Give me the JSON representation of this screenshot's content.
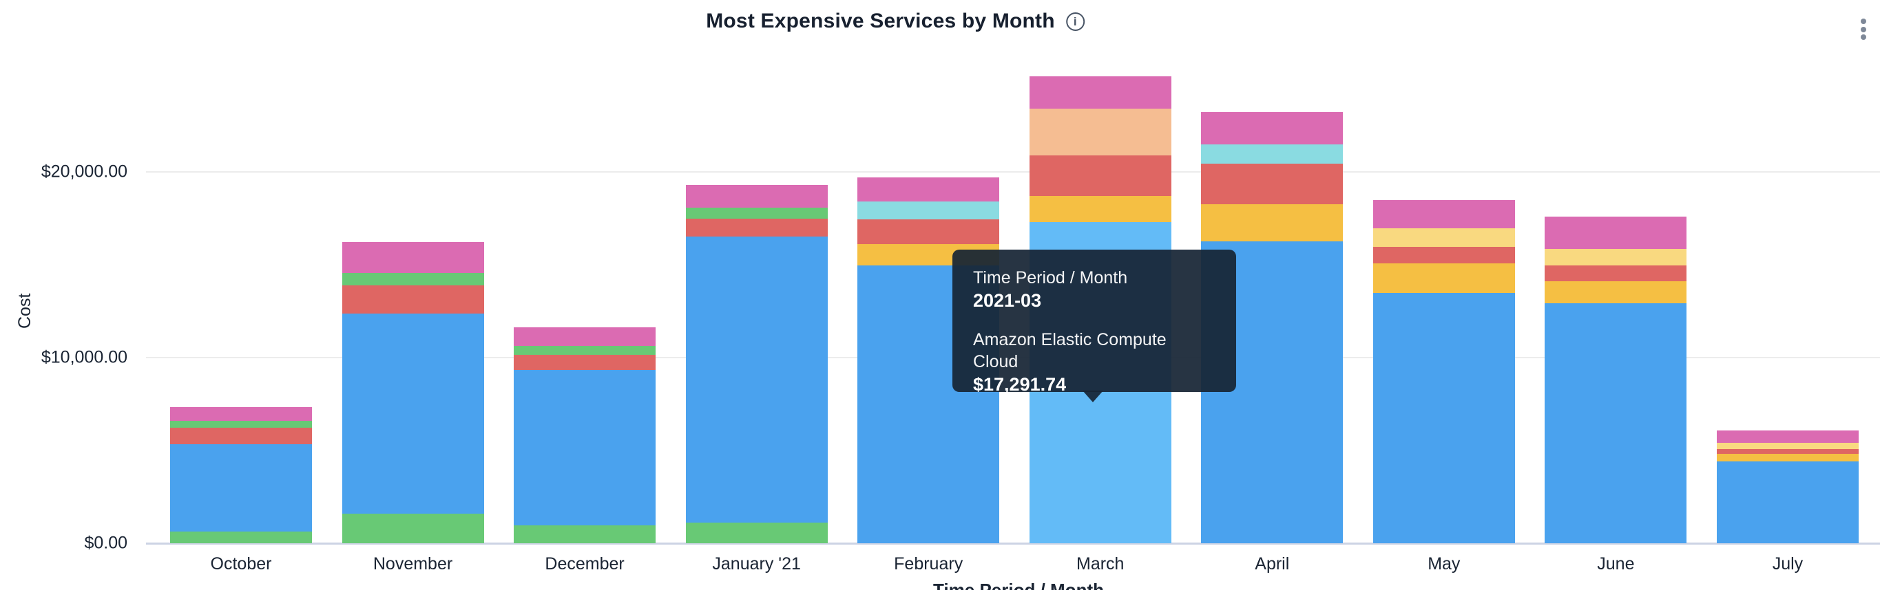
{
  "header": {
    "title": "Most Expensive Services by Month",
    "info_icon_glyph": "i"
  },
  "tooltip": {
    "dimension_label": "Time Period / Month",
    "dimension_value": "2021-03",
    "series_label": "Amazon Elastic Compute Cloud",
    "series_value": "$17,291.74"
  },
  "chart_data": {
    "type": "bar",
    "stacked": true,
    "title": "Most Expensive Services by Month",
    "xlabel": "Time Period / Month",
    "ylabel": "Cost",
    "ylim": [
      0,
      27000
    ],
    "grid": true,
    "legend": "none",
    "yticks": [
      {
        "label": "$0.00",
        "value": 0
      },
      {
        "label": "$10,000.00",
        "value": 10000
      },
      {
        "label": "$20,000.00",
        "value": 20000
      }
    ],
    "categories": [
      "October",
      "November",
      "December",
      "January '21",
      "February",
      "March",
      "April",
      "May",
      "June",
      "July"
    ],
    "highlighted_category": "March",
    "known_series_names": {
      "blue": "Amazon Elastic Compute Cloud"
    },
    "colors": {
      "blue": "#4aa2ee",
      "blue_highlighted": "#63bbf7",
      "green": "#68c975",
      "red": "#df6663",
      "pink": "#db6bb2",
      "amber": "#f5bf43",
      "pale_yellow": "#f9d980",
      "cyan": "#8adbe1",
      "peach": "#f5bd92"
    },
    "bars": [
      {
        "month": "October",
        "segments": [
          {
            "color": "green",
            "value": 630
          },
          {
            "color": "blue",
            "value": 4700
          },
          {
            "color": "red",
            "value": 890
          },
          {
            "color": "green",
            "value": 370
          },
          {
            "color": "pink",
            "value": 740
          }
        ]
      },
      {
        "month": "November",
        "segments": [
          {
            "color": "green",
            "value": 1590
          },
          {
            "color": "blue",
            "value": 10780
          },
          {
            "color": "red",
            "value": 1520
          },
          {
            "color": "green",
            "value": 670
          },
          {
            "color": "pink",
            "value": 1670
          }
        ]
      },
      {
        "month": "December",
        "segments": [
          {
            "color": "green",
            "value": 960
          },
          {
            "color": "blue",
            "value": 8370
          },
          {
            "color": "red",
            "value": 815
          },
          {
            "color": "green",
            "value": 480
          },
          {
            "color": "pink",
            "value": 1000
          }
        ]
      },
      {
        "month": "January '21",
        "segments": [
          {
            "color": "green",
            "value": 1110
          },
          {
            "color": "blue",
            "value": 15410
          },
          {
            "color": "red",
            "value": 960
          },
          {
            "color": "green",
            "value": 590
          },
          {
            "color": "pink",
            "value": 1220
          }
        ]
      },
      {
        "month": "February",
        "segments": [
          {
            "color": "blue",
            "value": 14960
          },
          {
            "color": "amber",
            "value": 1150
          },
          {
            "color": "red",
            "value": 1330
          },
          {
            "color": "cyan",
            "value": 960
          },
          {
            "color": "pink",
            "value": 1300
          }
        ]
      },
      {
        "month": "March",
        "segments": [
          {
            "color": "blue",
            "value": 17291.74
          },
          {
            "color": "amber",
            "value": 1410
          },
          {
            "color": "red",
            "value": 2180
          },
          {
            "color": "peach",
            "value": 2520
          },
          {
            "color": "pink",
            "value": 1740
          }
        ]
      },
      {
        "month": "April",
        "segments": [
          {
            "color": "blue",
            "value": 16260
          },
          {
            "color": "amber",
            "value": 2000
          },
          {
            "color": "red",
            "value": 2180
          },
          {
            "color": "cyan",
            "value": 1040
          },
          {
            "color": "pink",
            "value": 1740
          }
        ]
      },
      {
        "month": "May",
        "segments": [
          {
            "color": "blue",
            "value": 13480
          },
          {
            "color": "amber",
            "value": 1590
          },
          {
            "color": "red",
            "value": 890
          },
          {
            "color": "pale_yellow",
            "value": 1000
          },
          {
            "color": "pink",
            "value": 1520
          }
        ]
      },
      {
        "month": "June",
        "segments": [
          {
            "color": "blue",
            "value": 12930
          },
          {
            "color": "amber",
            "value": 1190
          },
          {
            "color": "red",
            "value": 850
          },
          {
            "color": "pale_yellow",
            "value": 890
          },
          {
            "color": "pink",
            "value": 1740
          }
        ]
      },
      {
        "month": "July",
        "segments": [
          {
            "color": "blue",
            "value": 4410
          },
          {
            "color": "amber",
            "value": 410
          },
          {
            "color": "red",
            "value": 260
          },
          {
            "color": "pale_yellow",
            "value": 330
          },
          {
            "color": "pink",
            "value": 670
          }
        ]
      }
    ]
  }
}
